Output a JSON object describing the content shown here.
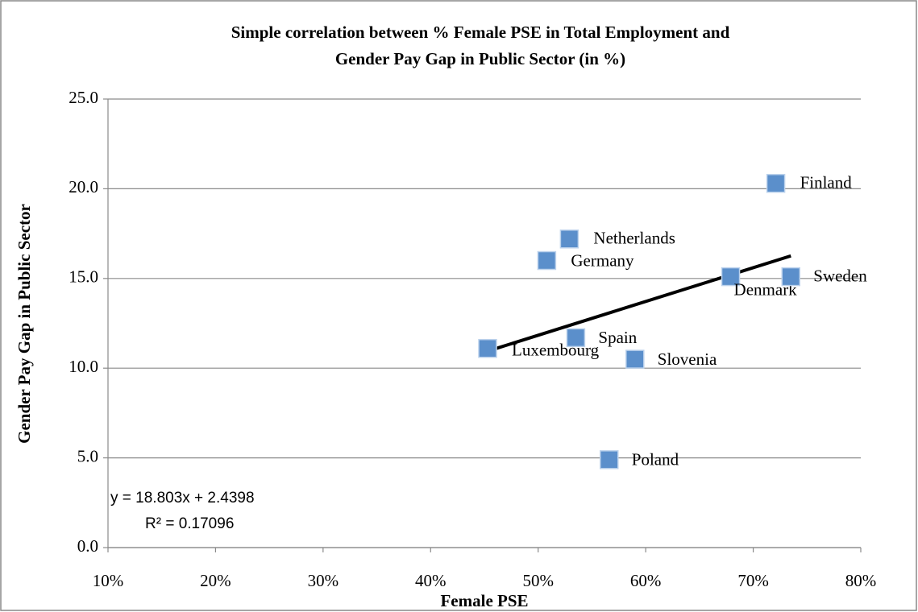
{
  "chart_data": {
    "type": "scatter",
    "title": [
      "Simple correlation between % Female PSE in Total Employment and",
      "Gender Pay Gap in Public Sector (in %)"
    ],
    "x_label": "Female PSE",
    "y_label": "Gender Pay Gap in Public Sector",
    "series": [
      {
        "name": "Gender Pay Gap in Public Sector",
        "color": "#5b8fcb",
        "labels": [
          "Luxembourg",
          "Netherlands",
          "Germany",
          "Spain",
          "Slovenia",
          "Poland",
          "Denmark",
          "Sweden",
          "Finland"
        ],
        "x": [
          45.3,
          52.9,
          50.8,
          53.5,
          59.0,
          56.6,
          67.9,
          73.5,
          72.1
        ],
        "values": [
          11.1,
          17.2,
          16.0,
          11.7,
          10.5,
          4.9,
          15.1,
          15.1,
          20.3
        ]
      }
    ],
    "trendline": {
      "x": [
        45.3,
        73.5
      ],
      "values": [
        10.95,
        16.26
      ],
      "color": "#000000"
    },
    "annotations": [
      "y = 18.803x + 2.4398",
      "R² = 0.17096"
    ],
    "xlim": [
      10,
      80
    ],
    "xticks": [
      {
        "value": 10,
        "label": "10%"
      },
      {
        "value": 20,
        "label": "20%"
      },
      {
        "value": 30,
        "label": "30%"
      },
      {
        "value": 40,
        "label": "40%"
      },
      {
        "value": 50,
        "label": "50%"
      },
      {
        "value": 60,
        "label": "60%"
      },
      {
        "value": 70,
        "label": "70%"
      },
      {
        "value": 80,
        "label": "80%"
      }
    ],
    "ylim": [
      0,
      25
    ],
    "yticks": [
      {
        "value": 0,
        "label": "0.0"
      },
      {
        "value": 5,
        "label": "5.0"
      },
      {
        "value": 10,
        "label": "10.0"
      },
      {
        "value": 15,
        "label": "15.0"
      },
      {
        "value": 20,
        "label": "20.0"
      },
      {
        "value": 25,
        "label": "25.0"
      }
    ],
    "grid": true
  }
}
